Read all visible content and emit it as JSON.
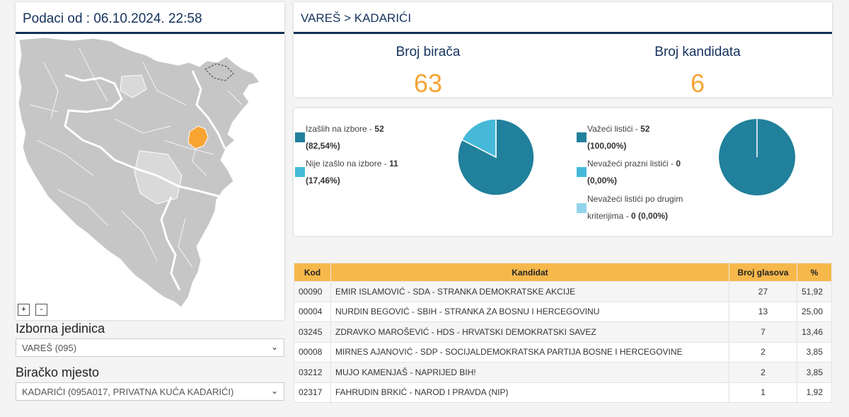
{
  "left": {
    "data_label": "Podaci od : 06.10.2024. 22:58",
    "zoom_in": "+",
    "zoom_out": "-",
    "unit_label": "Izborna jedinica",
    "unit_value": "VAREŠ (095)",
    "station_label": "Biračko mjesto",
    "station_value": "KADARIĆI (095A017, PRIVATNA KUĆA KADARIĆI)"
  },
  "breadcrumb": "VAREŠ > KADARIĆI",
  "stats": {
    "voters_label": "Broj birača",
    "voters_value": "63",
    "candidates_label": "Broj kandidata",
    "candidates_value": "6"
  },
  "turnout": {
    "items": [
      {
        "label": "Izašlih na izbore - ",
        "value": "52",
        "pct": "(82,54%)",
        "color": "#21809b"
      },
      {
        "label": "Nije izašlo na izbore - ",
        "value": "11",
        "pct": "(17,46%)",
        "color": "#46b9d9"
      }
    ],
    "fractions": [
      0.8254,
      0.1746
    ]
  },
  "ballots": {
    "items": [
      {
        "label": "Važeći listići - ",
        "value": "52",
        "pct": "(100,00%)",
        "color": "#21809b"
      },
      {
        "label": "Nevažeći prazni listići - ",
        "value": "0",
        "pct": "(0,00%)",
        "color": "#46b9d9"
      },
      {
        "label": "Nevažeći listići po drugim",
        "label2": "kriterijima - ",
        "value": "0",
        "pct": "(0,00%)",
        "color": "#94d4ea"
      }
    ],
    "fractions": [
      1.0,
      0.0,
      0.0
    ]
  },
  "table": {
    "headers": [
      "Kod",
      "Kandidat",
      "Broj glasova",
      "%"
    ],
    "rows": [
      {
        "code": "00090",
        "name": "EMIR ISLAMOVIĆ - SDA - STRANKA DEMOKRATSKE AKCIJE",
        "votes": "27",
        "pct": "51,92"
      },
      {
        "code": "00004",
        "name": "NURDIN BEGOVIĆ - SBIH - STRANKA ZA BOSNU I HERCEGOVINU",
        "votes": "13",
        "pct": "25,00"
      },
      {
        "code": "03245",
        "name": "ZDRAVKO MAROŠEVIĆ - HDS - HRVATSKI DEMOKRATSKI SAVEZ",
        "votes": "7",
        "pct": "13,46"
      },
      {
        "code": "00008",
        "name": "MIRNES AJANOVIĆ - SDP - SOCIJALDEMOKRATSKA PARTIJA BOSNE I HERCEGOVINE",
        "votes": "2",
        "pct": "3,85"
      },
      {
        "code": "03212",
        "name": "MUJO KAMENJAŠ - NAPRIJED BIH!",
        "votes": "2",
        "pct": "3,85"
      },
      {
        "code": "02317",
        "name": "FAHRUDIN BRKIĆ - NAROD I PRAVDA (NIP)",
        "votes": "1",
        "pct": "1,92"
      }
    ]
  },
  "colors": {
    "navy": "#14325c",
    "orange": "#f7a433",
    "header_orange": "#f7b84b",
    "teal": "#21809b",
    "light_teal": "#46b9d9",
    "pale_teal": "#94d4ea",
    "map_gray": "#c9c9c9",
    "map_selected": "#f7a433"
  }
}
